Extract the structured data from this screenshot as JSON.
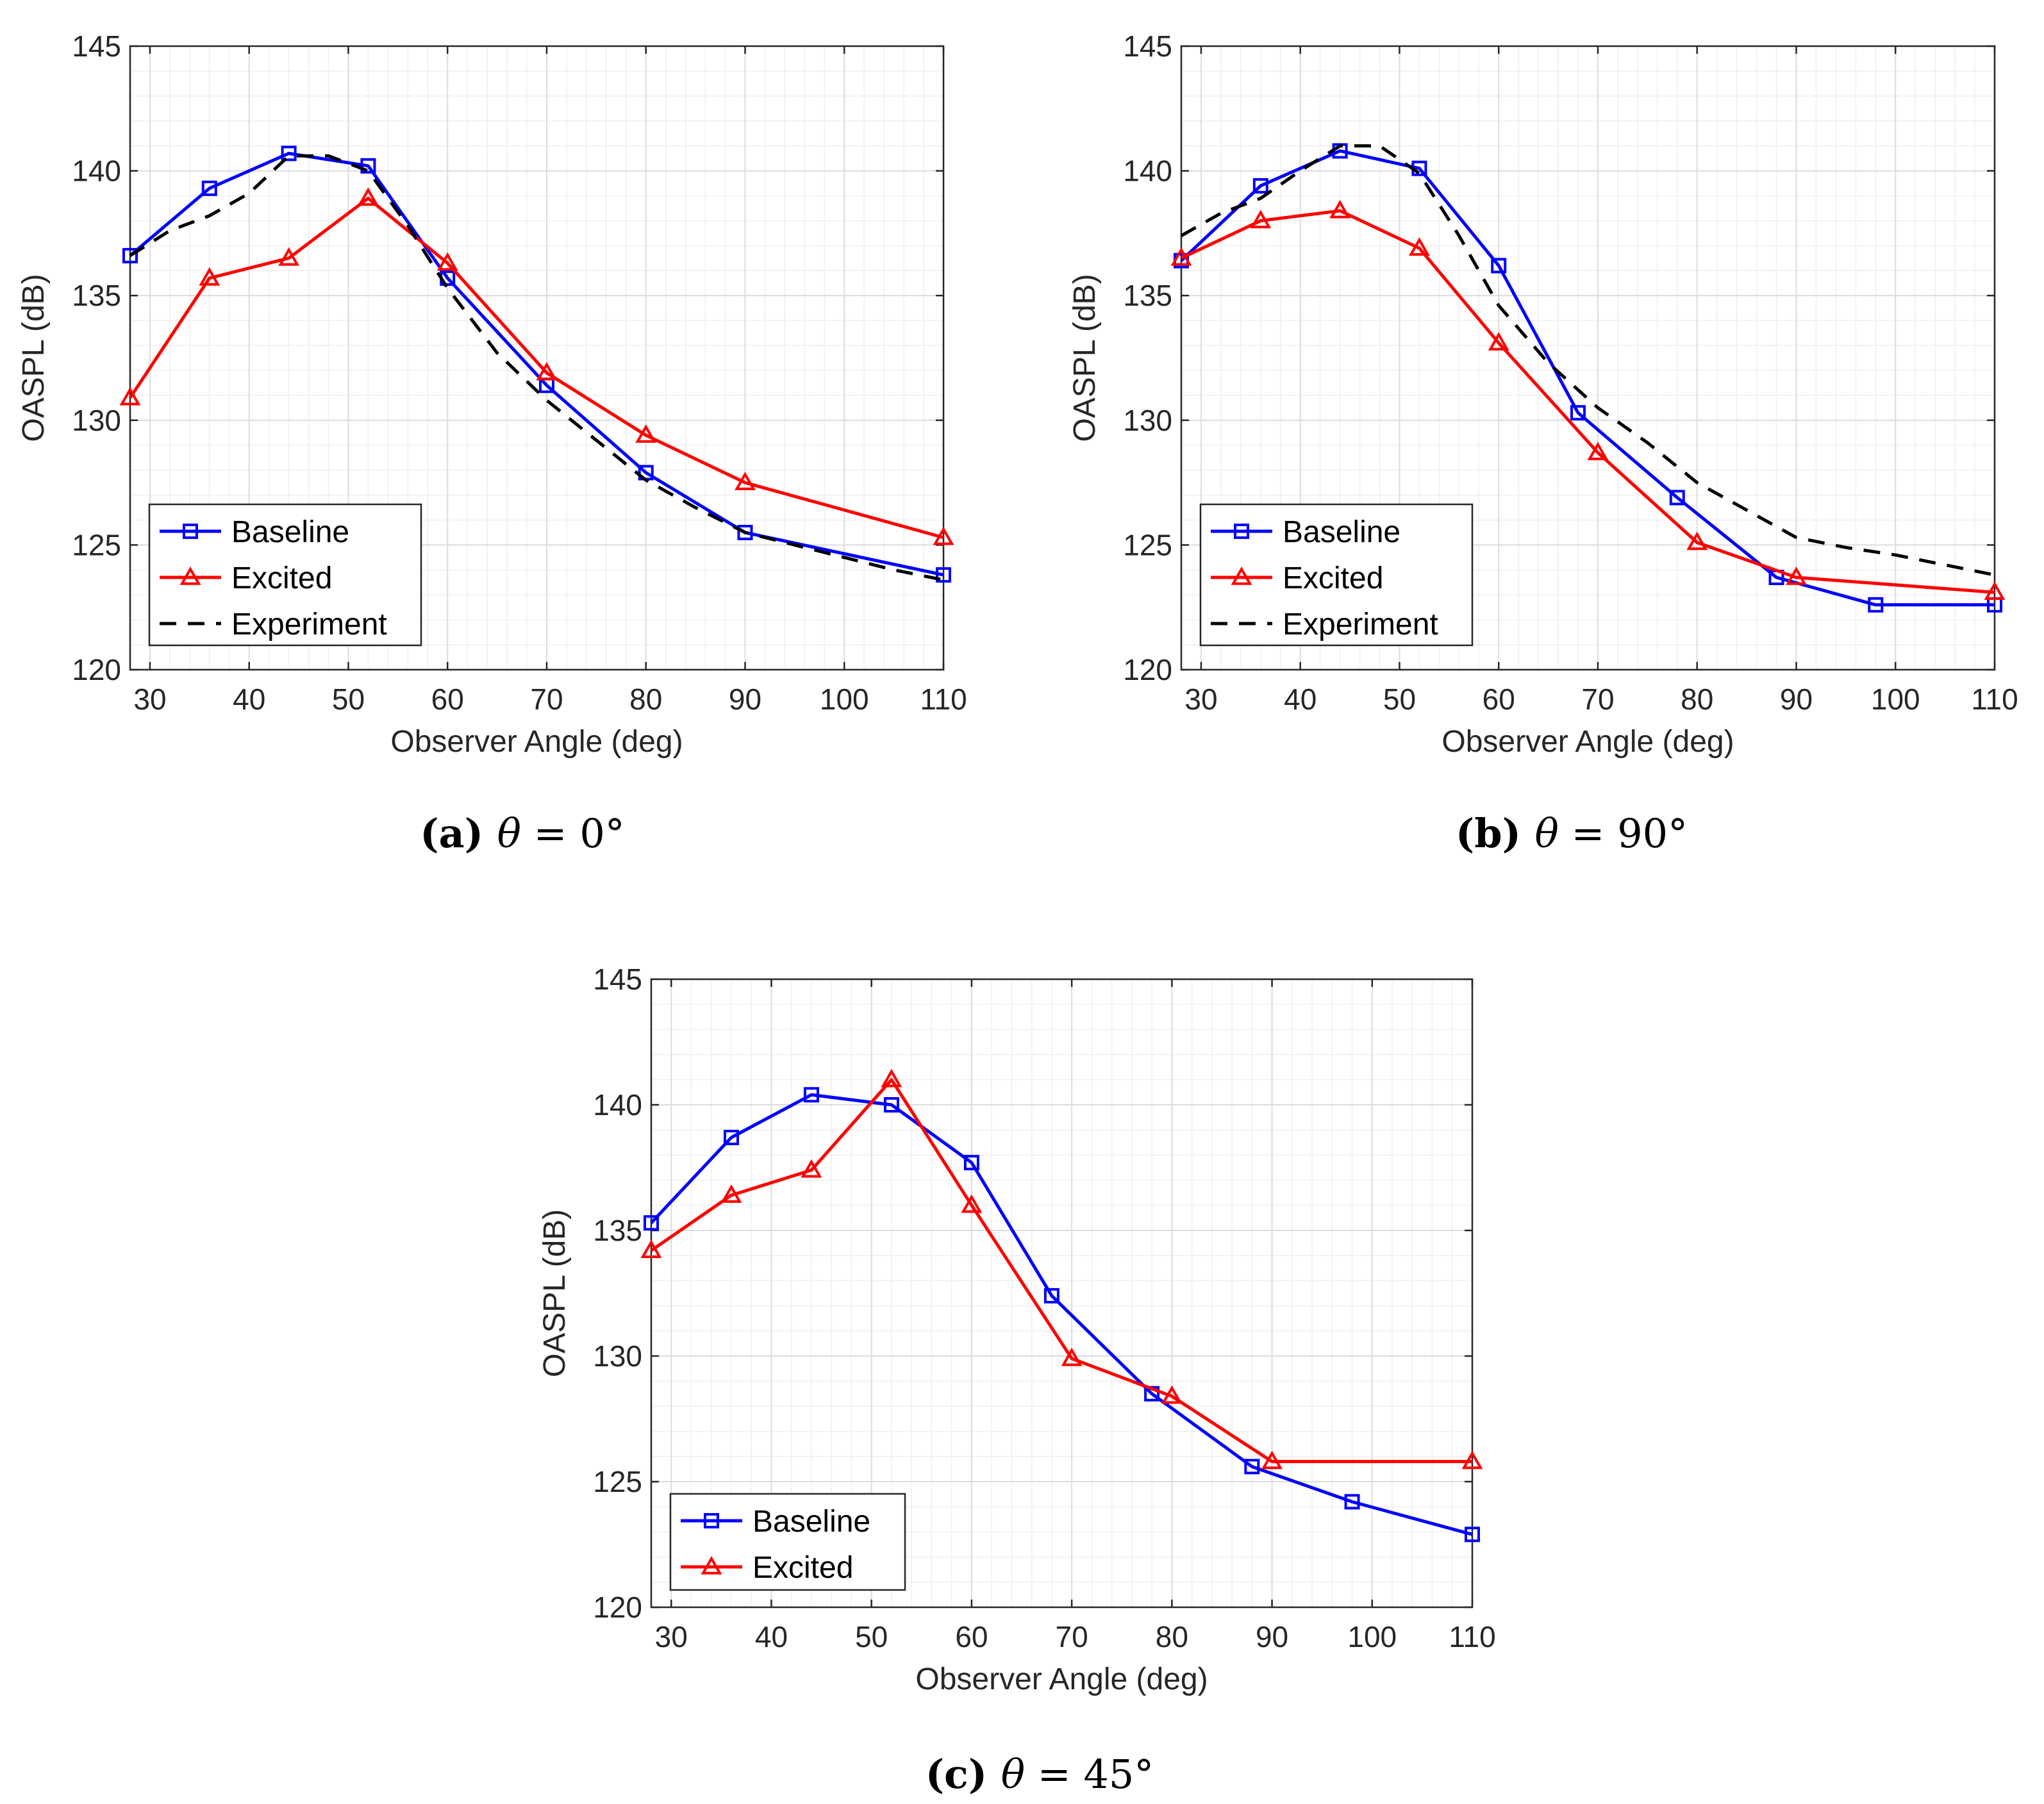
{
  "colors": {
    "baseline": "#0000ff",
    "excited": "#ff0000",
    "experiment": "#000000",
    "grid": "#dcdcdc",
    "minor_grid": "#efefef"
  },
  "chart_data": [
    {
      "type": "line",
      "panel": "a",
      "caption": {
        "label": "(a)",
        "symbol": "θ",
        "text": " = 0°"
      },
      "xlabel": "Observer Angle (deg)",
      "ylabel": "OASPL (dB)",
      "xlim": [
        28,
        110
      ],
      "ylim": [
        120,
        145
      ],
      "xticks": [
        30,
        40,
        50,
        60,
        70,
        80,
        90,
        100,
        110
      ],
      "yticks": [
        120,
        125,
        130,
        135,
        140,
        145
      ],
      "grid": true,
      "legend_position": "bottom-left",
      "series": [
        {
          "name": "Baseline",
          "color": "#0000ff",
          "marker": "square",
          "style": "solid",
          "x": [
            28,
            36,
            44,
            52,
            60,
            70,
            80,
            90,
            110
          ],
          "y": [
            136.6,
            139.3,
            140.7,
            140.2,
            135.7,
            131.4,
            127.9,
            125.5,
            123.8
          ]
        },
        {
          "name": "Excited",
          "color": "#ff0000",
          "marker": "triangle",
          "style": "solid",
          "x": [
            28,
            36,
            44,
            52,
            60,
            70,
            80,
            90,
            110
          ],
          "y": [
            130.9,
            135.7,
            136.5,
            138.9,
            136.3,
            131.9,
            129.4,
            127.5,
            125.3
          ]
        },
        {
          "name": "Experiment",
          "color": "#000000",
          "marker": "none",
          "style": "dashed",
          "x": [
            28,
            32,
            36,
            40,
            44,
            48,
            52,
            56,
            60,
            65,
            70,
            75,
            80,
            85,
            90,
            95,
            100,
            105,
            110
          ],
          "y": [
            136.6,
            137.6,
            138.2,
            139.1,
            140.6,
            140.6,
            140.0,
            137.8,
            135.3,
            132.7,
            130.8,
            129.2,
            127.6,
            126.5,
            125.5,
            125.0,
            124.5,
            124.0,
            123.6
          ]
        }
      ]
    },
    {
      "type": "line",
      "panel": "b",
      "caption": {
        "label": "(b)",
        "symbol": "θ",
        "text": " = 90°"
      },
      "xlabel": "Observer Angle (deg)",
      "ylabel": "OASPL (dB)",
      "xlim": [
        28,
        110
      ],
      "ylim": [
        120,
        145
      ],
      "xticks": [
        30,
        40,
        50,
        60,
        70,
        80,
        90,
        100,
        110
      ],
      "yticks": [
        120,
        125,
        130,
        135,
        140,
        145
      ],
      "grid": true,
      "legend_position": "bottom-left",
      "series": [
        {
          "name": "Baseline",
          "color": "#0000ff",
          "marker": "square",
          "style": "solid",
          "x": [
            28,
            36,
            44,
            52,
            60,
            68,
            78,
            88,
            98,
            110
          ],
          "y": [
            136.4,
            139.4,
            140.8,
            140.1,
            136.2,
            130.3,
            126.9,
            123.7,
            122.6,
            122.6
          ]
        },
        {
          "name": "Excited",
          "color": "#ff0000",
          "marker": "triangle",
          "style": "solid",
          "x": [
            28,
            36,
            44,
            52,
            60,
            70,
            80,
            90,
            110
          ],
          "y": [
            136.5,
            138.0,
            138.4,
            136.9,
            133.1,
            128.7,
            125.1,
            123.7,
            123.1
          ]
        },
        {
          "name": "Experiment",
          "color": "#000000",
          "marker": "none",
          "style": "dashed",
          "x": [
            28,
            32,
            36,
            40,
            44,
            48,
            52,
            56,
            60,
            65,
            70,
            75,
            80,
            85,
            90,
            95,
            100,
            105,
            110
          ],
          "y": [
            137.4,
            138.3,
            138.9,
            140.0,
            141.0,
            141.0,
            139.9,
            137.4,
            134.6,
            132.3,
            130.5,
            129.1,
            127.5,
            126.4,
            125.3,
            124.9,
            124.6,
            124.2,
            123.8
          ]
        }
      ]
    },
    {
      "type": "line",
      "panel": "c",
      "caption": {
        "label": "(c)",
        "symbol": "θ",
        "text": " = 45°"
      },
      "xlabel": "Observer Angle (deg)",
      "ylabel": "OASPL (dB)",
      "xlim": [
        28,
        110
      ],
      "ylim": [
        120,
        145
      ],
      "xticks": [
        30,
        40,
        50,
        60,
        70,
        80,
        90,
        100,
        110
      ],
      "yticks": [
        120,
        125,
        130,
        135,
        140,
        145
      ],
      "grid": true,
      "legend_position": "bottom-left",
      "series": [
        {
          "name": "Baseline",
          "color": "#0000ff",
          "marker": "square",
          "style": "solid",
          "x": [
            28,
            36,
            44,
            52,
            60,
            68,
            78,
            88,
            98,
            110
          ],
          "y": [
            135.3,
            138.7,
            140.4,
            140.0,
            137.7,
            132.4,
            128.5,
            125.6,
            124.2,
            122.9
          ]
        },
        {
          "name": "Excited",
          "color": "#ff0000",
          "marker": "triangle",
          "style": "solid",
          "x": [
            28,
            36,
            44,
            52,
            60,
            70,
            80,
            90,
            110
          ],
          "y": [
            134.2,
            136.4,
            137.4,
            141.0,
            136.0,
            129.9,
            128.4,
            125.8,
            125.8
          ]
        }
      ]
    }
  ]
}
